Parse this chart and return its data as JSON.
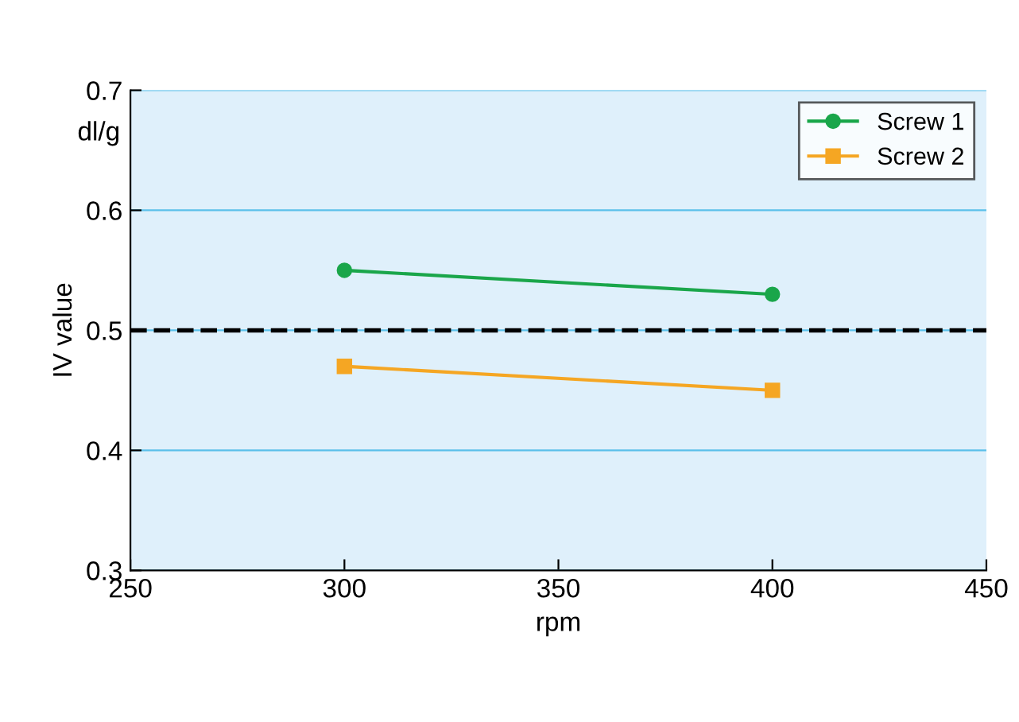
{
  "chart_data": {
    "type": "line",
    "xlabel": "rpm",
    "ylabel": "IV value",
    "annotations": [
      "dl/g"
    ],
    "x": [
      300,
      400
    ],
    "series": [
      {
        "name": "Screw 1",
        "color": "#1aa64a",
        "values": [
          0.55,
          0.53
        ],
        "marker": "circle"
      },
      {
        "name": "Screw 2",
        "color": "#f5a623",
        "values": [
          0.47,
          0.45
        ],
        "marker": "square"
      }
    ],
    "xlim": [
      250,
      450
    ],
    "xticks": [
      250,
      300,
      350,
      400,
      450
    ],
    "ylim": [
      0.3,
      0.7
    ],
    "yticks": [
      0.3,
      0.4,
      0.5,
      0.6,
      0.7
    ],
    "ref_lines": [
      {
        "axis": "y",
        "value": 0.5,
        "color": "#000000",
        "line_style": "dashed"
      }
    ],
    "grid": "y",
    "legend": "top right",
    "line_style": "solid"
  }
}
